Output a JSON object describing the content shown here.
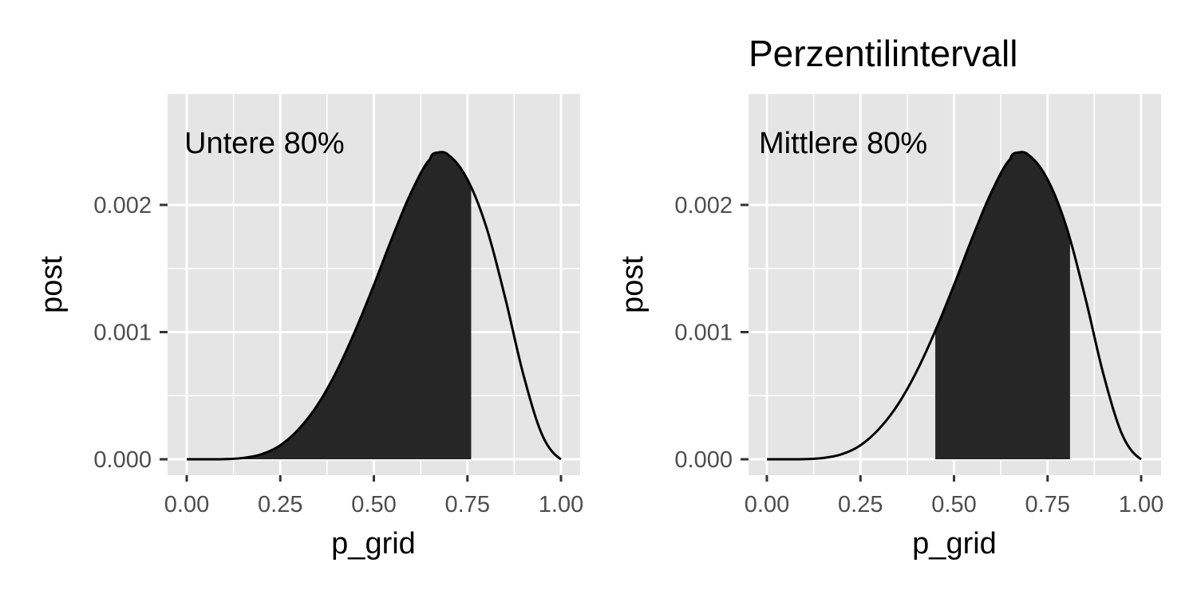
{
  "chart_data": [
    {
      "type": "area",
      "title": "",
      "xlabel": "p_grid",
      "ylabel": "post",
      "xlim": [
        0,
        1
      ],
      "ylim": [
        0,
        0.00275
      ],
      "x_ticks": [
        0,
        0.25,
        0.5,
        0.75,
        1
      ],
      "x_tick_labels": [
        "0.00",
        "0.25",
        "0.50",
        "0.75",
        "1.00"
      ],
      "y_ticks": [
        0,
        0.001,
        0.002
      ],
      "y_tick_labels": [
        "0.000",
        "0.001",
        "0.002"
      ],
      "grid": true,
      "annotation": "Untere 80%",
      "shaded_interval": [
        0,
        0.76
      ],
      "curve": {
        "x": [
          0.0,
          0.05,
          0.1,
          0.15,
          0.2,
          0.25,
          0.3,
          0.35,
          0.4,
          0.45,
          0.5,
          0.55,
          0.6,
          0.65,
          0.667,
          0.7,
          0.75,
          0.8,
          0.85,
          0.9,
          0.95,
          1.0
        ],
        "y": [
          0.0,
          0.0,
          1e-06,
          1e-05,
          4e-05,
          0.00011,
          0.00024,
          0.00043,
          0.00069,
          0.00101,
          0.00137,
          0.00175,
          0.0021,
          0.00236,
          0.00241,
          0.00239,
          0.0022,
          0.00183,
          0.00128,
          0.00066,
          0.00019,
          0.0
        ]
      }
    },
    {
      "type": "area",
      "title": "Perzentilintervall",
      "xlabel": "p_grid",
      "ylabel": "post",
      "xlim": [
        0,
        1
      ],
      "ylim": [
        0,
        0.00275
      ],
      "x_ticks": [
        0,
        0.25,
        0.5,
        0.75,
        1
      ],
      "x_tick_labels": [
        "0.00",
        "0.25",
        "0.50",
        "0.75",
        "1.00"
      ],
      "y_ticks": [
        0,
        0.001,
        0.002
      ],
      "y_tick_labels": [
        "0.000",
        "0.001",
        "0.002"
      ],
      "grid": true,
      "annotation": "Mittlere 80%",
      "shaded_interval": [
        0.45,
        0.81
      ],
      "curve": {
        "x": [
          0.0,
          0.05,
          0.1,
          0.15,
          0.2,
          0.25,
          0.3,
          0.35,
          0.4,
          0.45,
          0.5,
          0.55,
          0.6,
          0.65,
          0.667,
          0.7,
          0.75,
          0.8,
          0.85,
          0.9,
          0.95,
          1.0
        ],
        "y": [
          0.0,
          0.0,
          1e-06,
          1e-05,
          4e-05,
          0.00011,
          0.00024,
          0.00043,
          0.00069,
          0.00101,
          0.00137,
          0.00175,
          0.0021,
          0.00236,
          0.00241,
          0.00239,
          0.0022,
          0.00183,
          0.00128,
          0.00066,
          0.00019,
          0.0
        ]
      }
    }
  ],
  "colors": {
    "panel_background": "#e5e5e5",
    "grid_line": "#ffffff",
    "fill": "#262626",
    "line": "#000000",
    "tick_text": "#4d4d4d"
  }
}
